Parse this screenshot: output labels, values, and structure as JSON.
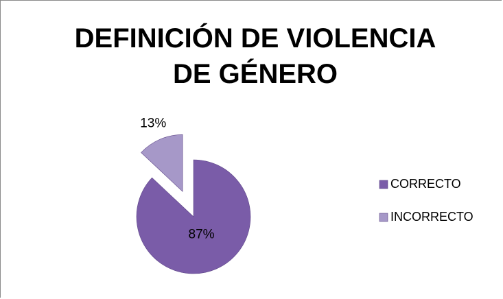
{
  "chart_data": {
    "type": "pie",
    "title": "DEFINICIÓN DE VIOLENCIA DE GÉNERO",
    "categories": [
      "CORRECTO",
      "INCORRECTO"
    ],
    "values": [
      87,
      13
    ],
    "value_labels": [
      "87%",
      "13%"
    ],
    "colors": [
      "#7a5ca8",
      "#a698c8"
    ],
    "exploded": [
      false,
      true
    ],
    "legend": "right"
  }
}
